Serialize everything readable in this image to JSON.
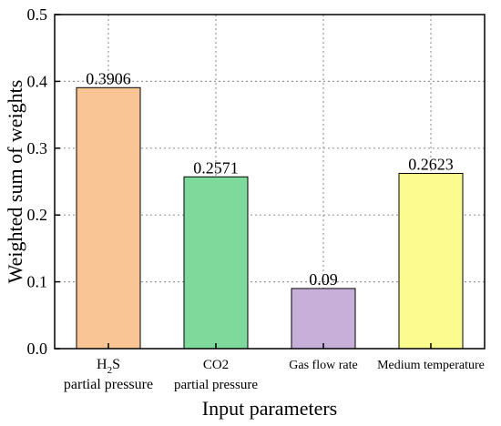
{
  "chart_data": {
    "type": "bar",
    "categories": [
      [
        "H2S",
        "partial pressure"
      ],
      [
        "CO2",
        "partial pressure"
      ],
      [
        "Gas flow rate"
      ],
      [
        "Medium temperature"
      ]
    ],
    "values": [
      0.3906,
      0.2571,
      0.09,
      0.2623
    ],
    "value_labels": [
      "0.3906",
      "0.2571",
      "0.09",
      "0.2623"
    ],
    "bar_colors": [
      "#F9C594",
      "#7DDA9B",
      "#C7AFD9",
      "#FBFB90"
    ],
    "xlabel": "Input parameters",
    "ylabel": "Weighted sum of weights",
    "ylim": [
      0,
      0.5
    ],
    "yticks": [
      "0.0",
      "0.1",
      "0.2",
      "0.3",
      "0.4",
      "0.5"
    ],
    "grid": true
  }
}
